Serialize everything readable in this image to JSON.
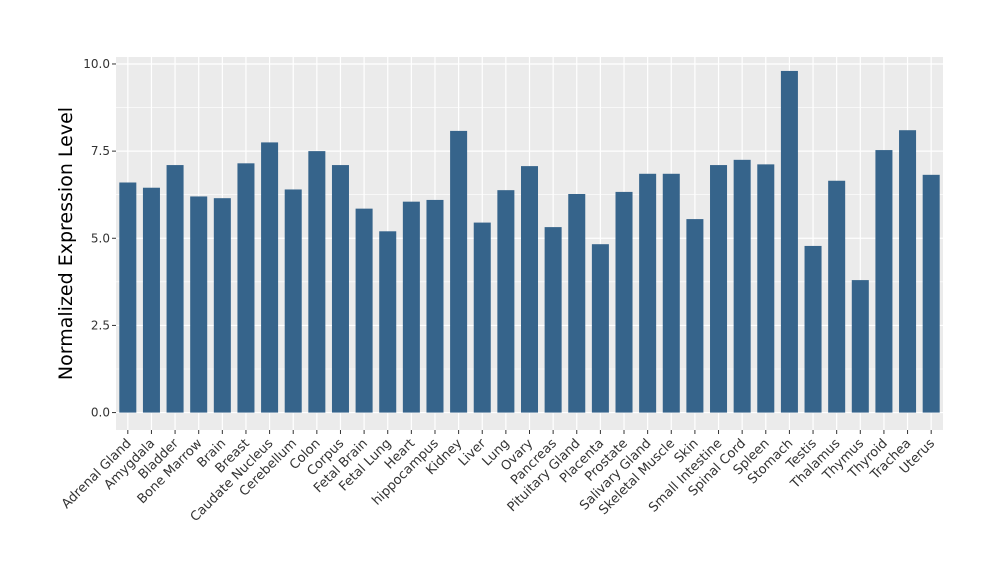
{
  "chart_data": {
    "type": "bar",
    "title": "",
    "xlabel": "",
    "ylabel": "Normalized Expression Level",
    "ylim": [
      -0.5,
      10.2
    ],
    "yticks": [
      "0.0",
      "2.5",
      "5.0",
      "7.5",
      "10.0"
    ],
    "ytick_values": [
      0,
      2.5,
      5,
      7.5,
      10
    ],
    "grid": true,
    "legend": "none",
    "colors": {
      "bar": "#36648b",
      "panel": "#ebebeb",
      "grid": "#ffffff"
    },
    "categories": [
      "Adrenal Gland",
      "Amygdala",
      "Bladder",
      "Bone Marrow",
      "Brain",
      "Breast",
      "Caudate Nucleus",
      "Cerebellum",
      "Colon",
      "Corpus",
      "Fetal Brain",
      "Fetal Lung",
      "Heart",
      "hippocampus",
      "Kidney",
      "Liver",
      "Lung",
      "Ovary",
      "Pancreas",
      "Pituitary Gland",
      "Placenta",
      "Prostate",
      "Salivary Gland",
      "Skeletal Muscle",
      "Skin",
      "Small Intestine",
      "Spinal Cord",
      "Spleen",
      "Stomach",
      "Testis",
      "Thalamus",
      "Thymus",
      "Thyroid",
      "Trachea",
      "Uterus"
    ],
    "values": [
      6.6,
      6.45,
      7.1,
      6.2,
      6.15,
      7.15,
      7.75,
      6.4,
      7.5,
      7.1,
      5.85,
      5.2,
      6.05,
      6.1,
      8.08,
      5.45,
      6.38,
      7.07,
      5.32,
      6.27,
      4.83,
      6.33,
      6.85,
      6.85,
      5.55,
      7.1,
      7.25,
      7.12,
      9.8,
      4.78,
      6.65,
      3.8,
      7.53,
      8.1,
      6.82
    ]
  }
}
